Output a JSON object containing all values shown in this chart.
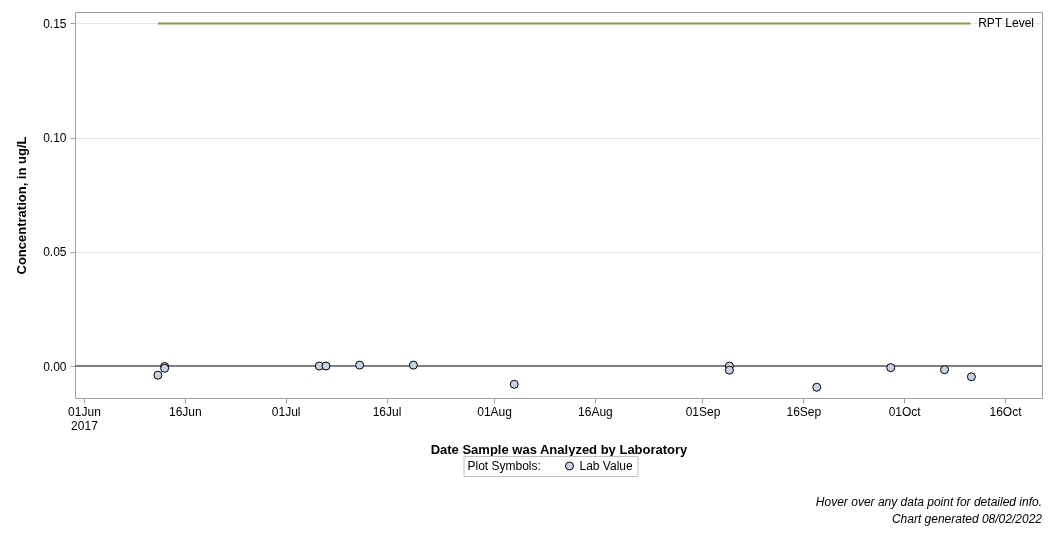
{
  "chart_data": {
    "type": "scatter",
    "xlabel": "Date Sample was Analyzed by Laboratory",
    "ylabel": "Concentration, in ug/L",
    "legend_title": "Plot Symbols:",
    "annotations": [
      "Hover over any data point for detailed info.",
      "Chart generated 08/02/2022"
    ],
    "x": [
      "2017-06-12",
      "2017-06-13",
      "2017-06-13",
      "2017-07-06",
      "2017-07-07",
      "2017-07-12",
      "2017-07-20",
      "2017-08-04",
      "2017-09-05",
      "2017-09-05",
      "2017-09-18",
      "2017-09-29",
      "2017-10-07",
      "2017-10-11"
    ],
    "series": [
      {
        "name": "Lab Value",
        "color": "#c6d3e5",
        "values": [
          -0.004,
          -0.0002,
          -0.001,
          0,
          0,
          0.0004,
          0.0004,
          -0.008,
          0,
          -0.0018,
          -0.0093,
          -0.0007,
          -0.0016,
          -0.0047
        ]
      }
    ],
    "xlim": [
      "2017-05-30T16:00",
      "2017-10-21T12:00"
    ],
    "xticks": [
      {
        "value": "2017-06-01",
        "label": "01Jun\n2017"
      },
      {
        "value": "2017-06-16",
        "label": "16Jun"
      },
      {
        "value": "2017-07-01",
        "label": "01Jul"
      },
      {
        "value": "2017-07-16",
        "label": "16Jul"
      },
      {
        "value": "2017-08-01",
        "label": "01Aug"
      },
      {
        "value": "2017-08-16",
        "label": "16Aug"
      },
      {
        "value": "2017-09-01",
        "label": "01Sep"
      },
      {
        "value": "2017-09-16",
        "label": "16Sep"
      },
      {
        "value": "2017-10-01",
        "label": "01Oct"
      },
      {
        "value": "2017-10-16",
        "label": "16Oct"
      }
    ],
    "ylim": [
      -0.014,
      0.155
    ],
    "yticks": [
      {
        "value": 0,
        "label": "0.00"
      },
      {
        "value": 0.05,
        "label": "0.05"
      },
      {
        "value": 0.1,
        "label": "0.10"
      },
      {
        "value": 0.15,
        "label": "0.15"
      }
    ],
    "ref_lines": [
      {
        "axis": "y",
        "value": 0,
        "color": "#808080"
      },
      {
        "axis": "y",
        "value": 0.15,
        "label": "RPT Level",
        "color": "#80a040"
      }
    ],
    "grid": "y",
    "legend": "bottom",
    "marker": "circle"
  }
}
